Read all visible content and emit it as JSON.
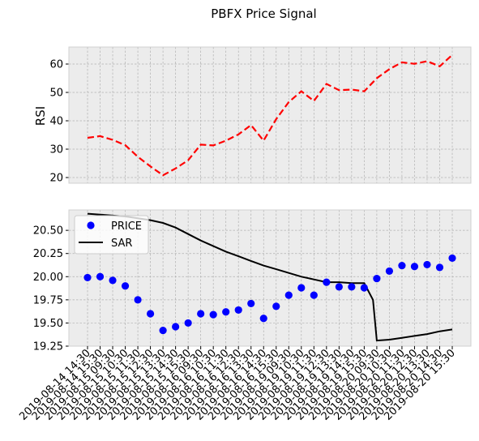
{
  "figure": {
    "title": "PBFX Price Signal"
  },
  "colors": {
    "rsi": "#ff0000",
    "price": "#0000ff",
    "sar": "#000000",
    "panel_bg": "#ececec",
    "grid": "#b0b0b0"
  },
  "chart_data": [
    {
      "type": "line",
      "ylabel": "RSI",
      "xlabel": "",
      "ylim": [
        18,
        66
      ],
      "yticks": [
        20,
        30,
        40,
        50,
        60
      ],
      "grid": true,
      "series": [
        {
          "name": "",
          "style": "dashed",
          "color": "#ff0000",
          "values": [
            34.0,
            34.6,
            33.3,
            31.4,
            27.3,
            23.9,
            20.8,
            23.2,
            26.1,
            31.6,
            31.3,
            33.0,
            35.2,
            38.5,
            33.0,
            40.6,
            46.6,
            50.4,
            47.0,
            53.0,
            50.8,
            51.0,
            50.4,
            55.0,
            58.2,
            60.6,
            60.1,
            61.0,
            59.2,
            63.2
          ]
        }
      ]
    },
    {
      "type": "line",
      "xlabel": "",
      "ylabel": "",
      "ylim": [
        19.25,
        20.72
      ],
      "yticks": [
        19.25,
        19.5,
        19.75,
        20.0,
        20.25,
        20.5
      ],
      "ytick_labels": [
        "19.25",
        "19.50",
        "19.75",
        "20.00",
        "20.25",
        "20.50"
      ],
      "grid": true,
      "legend": {
        "position": "top-left",
        "entries": [
          "PRICE",
          "SAR"
        ]
      },
      "x_labels": [
        "2019-08-14 14:30",
        "2019-08-14 15:30",
        "2019-08-15 09:30",
        "2019-08-15 10:30",
        "2019-08-15 11:30",
        "2019-08-15 12:30",
        "2019-08-15 13:30",
        "2019-08-15 14:30",
        "2019-08-15 15:30",
        "2019-08-16 09:30",
        "2019-08-16 10:30",
        "2019-08-16 11:30",
        "2019-08-16 12:30",
        "2019-08-16 13:30",
        "2019-08-16 14:30",
        "2019-08-16 15:30",
        "2019-08-19 09:30",
        "2019-08-19 10:30",
        "2019-08-19 11:30",
        "2019-08-19 12:30",
        "2019-08-19 13:30",
        "2019-08-19 14:30",
        "2019-08-19 15:30",
        "2019-08-20 09:30",
        "2019-08-20 10:30",
        "2019-08-20 11:30",
        "2019-08-20 12:30",
        "2019-08-20 13:30",
        "2019-08-20 14:30",
        "2019-08-20 15:30"
      ],
      "series": [
        {
          "name": "PRICE",
          "style": "markers",
          "color": "#0000ff",
          "values": [
            19.99,
            20.0,
            19.96,
            19.9,
            19.75,
            19.6,
            19.42,
            19.46,
            19.5,
            19.6,
            19.59,
            19.62,
            19.64,
            19.71,
            19.55,
            19.68,
            19.8,
            19.88,
            19.8,
            19.94,
            19.89,
            19.89,
            19.88,
            19.98,
            20.06,
            20.12,
            20.11,
            20.13,
            20.1,
            20.2
          ]
        },
        {
          "name": "SAR",
          "style": "solid",
          "color": "#000000",
          "x": [
            0,
            1,
            2,
            3,
            4,
            5,
            6,
            7,
            8,
            9,
            10,
            11,
            12,
            13,
            14,
            15,
            16,
            17,
            18,
            19,
            20,
            21,
            22,
            22.7,
            23,
            24,
            25,
            26,
            27,
            28,
            29
          ],
          "values": [
            20.68,
            20.67,
            20.66,
            20.65,
            20.63,
            20.61,
            20.58,
            20.53,
            20.46,
            20.39,
            20.33,
            20.27,
            20.22,
            20.17,
            20.12,
            20.08,
            20.04,
            20.0,
            19.97,
            19.94,
            19.94,
            19.93,
            19.93,
            19.75,
            19.31,
            19.32,
            19.34,
            19.36,
            19.38,
            19.41,
            19.43
          ]
        }
      ]
    }
  ]
}
